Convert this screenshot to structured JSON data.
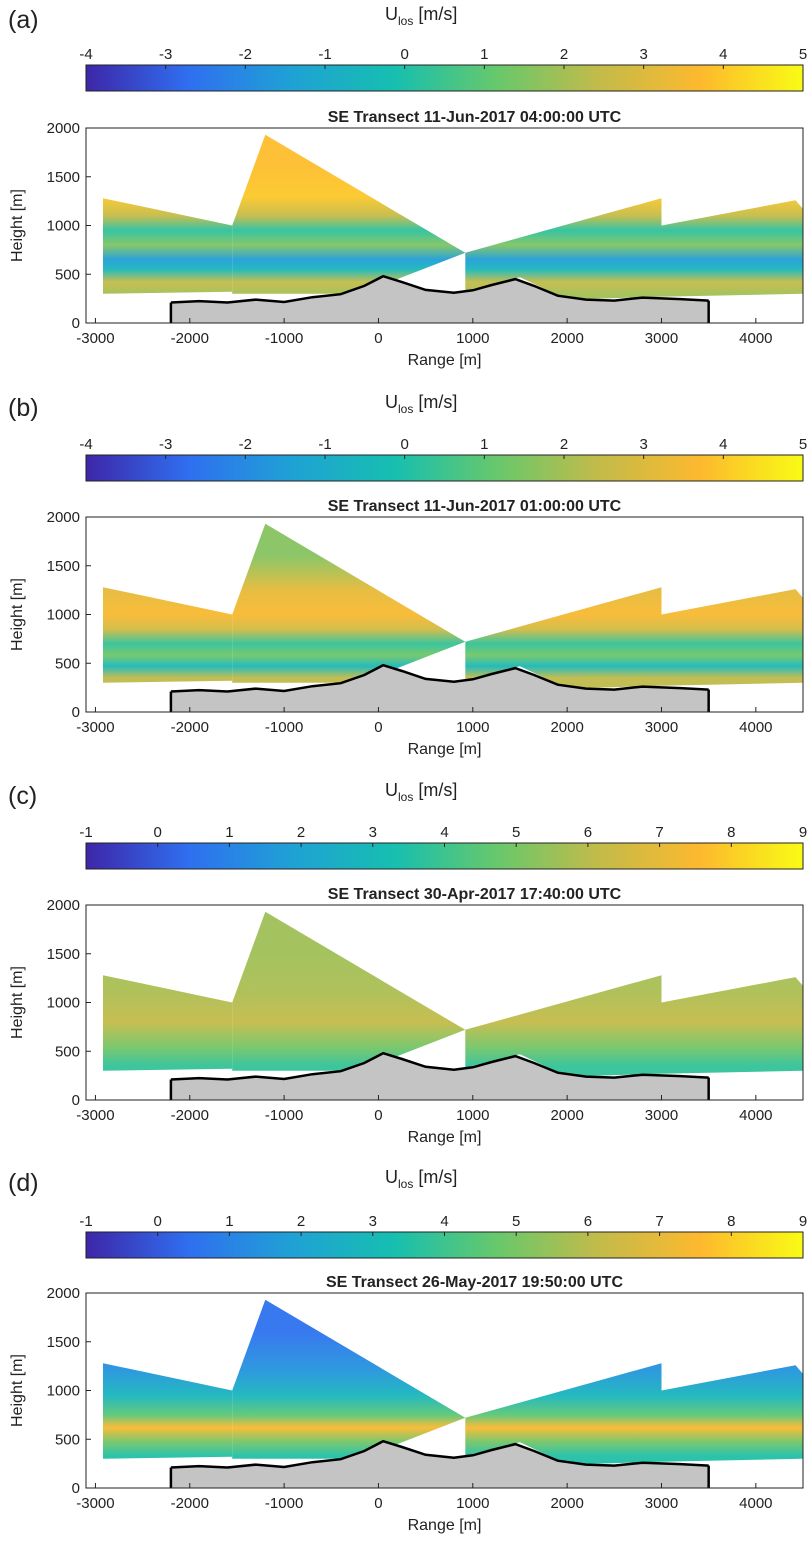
{
  "colormap": [
    "#3e26a8",
    "#2f6ff0",
    "#1fa1d5",
    "#16bfb0",
    "#66c86c",
    "#c2bb4a",
    "#fdb92e",
    "#f9fb15"
  ],
  "terrain_color": "#c4c4c4",
  "chart_data": [
    {
      "type": "heatmap",
      "panel_label": "(a)",
      "title": "SE Transect 11-Jun-2017 04:00:00 UTC",
      "colorbar": {
        "label_main": "U",
        "label_sub": "los",
        "label_unit": " [m/s]",
        "ticks": [
          -4,
          -3,
          -2,
          -1,
          0,
          1,
          2,
          3,
          4,
          5
        ],
        "range": [
          -4,
          5
        ]
      },
      "xlabel": "Range [m]",
      "ylabel": "Height [m]",
      "xlim": [
        -3100,
        4500
      ],
      "ylim": [
        0,
        2000
      ],
      "xticks": [
        -3000,
        -2000,
        -1000,
        0,
        1000,
        2000,
        3000,
        4000
      ],
      "yticks": [
        0,
        500,
        1000,
        1500,
        2000
      ],
      "layers": [
        {
          "height": 1600,
          "value": 3.8
        },
        {
          "height": 1300,
          "value": 4.0
        },
        {
          "height": 1100,
          "value": 2.5
        },
        {
          "height": 950,
          "value": 0.2
        },
        {
          "height": 800,
          "value": 1.5
        },
        {
          "height": 650,
          "value": -1.5
        },
        {
          "height": 550,
          "value": -0.5
        },
        {
          "height": 420,
          "value": 2.5
        },
        {
          "height": 300,
          "value": 2.0
        }
      ]
    },
    {
      "type": "heatmap",
      "panel_label": "(b)",
      "title": "SE Transect 11-Jun-2017 01:00:00 UTC",
      "colorbar": {
        "label_main": "U",
        "label_sub": "los",
        "label_unit": " [m/s]",
        "ticks": [
          -4,
          -3,
          -2,
          -1,
          0,
          1,
          2,
          3,
          4,
          5
        ],
        "range": [
          -4,
          5
        ]
      },
      "xlabel": "Range [m]",
      "ylabel": "Height [m]",
      "xlim": [
        -3100,
        4500
      ],
      "ylim": [
        0,
        2000
      ],
      "xticks": [
        -3000,
        -2000,
        -1000,
        0,
        1000,
        2000,
        3000,
        4000
      ],
      "yticks": [
        0,
        500,
        1000,
        1500,
        2000
      ],
      "layers": [
        {
          "height": 1600,
          "value": 1.6
        },
        {
          "height": 1250,
          "value": 3.2
        },
        {
          "height": 1000,
          "value": 3.6
        },
        {
          "height": 850,
          "value": 2.8
        },
        {
          "height": 700,
          "value": 0.3
        },
        {
          "height": 580,
          "value": 1.3
        },
        {
          "height": 470,
          "value": -0.5
        },
        {
          "height": 350,
          "value": 2.4
        }
      ]
    },
    {
      "type": "heatmap",
      "panel_label": "(c)",
      "title": "SE Transect 30-Apr-2017 17:40:00 UTC",
      "colorbar": {
        "label_main": "U",
        "label_sub": "los",
        "label_unit": " [m/s]",
        "ticks": [
          -1,
          0,
          1,
          2,
          3,
          4,
          5,
          6,
          7,
          8,
          9
        ],
        "range": [
          -1,
          9
        ]
      },
      "xlabel": "Range [m]",
      "ylabel": "Height [m]",
      "xlim": [
        -3100,
        4500
      ],
      "ylim": [
        0,
        2000
      ],
      "xticks": [
        -3000,
        -2000,
        -1000,
        0,
        1000,
        2000,
        3000,
        4000
      ],
      "yticks": [
        0,
        500,
        1000,
        1500,
        2000
      ],
      "layers": [
        {
          "height": 1500,
          "value": 5.6
        },
        {
          "height": 1100,
          "value": 5.8
        },
        {
          "height": 800,
          "value": 6.2
        },
        {
          "height": 550,
          "value": 5.0
        },
        {
          "height": 350,
          "value": 3.8
        }
      ]
    },
    {
      "type": "heatmap",
      "panel_label": "(d)",
      "title": "SE Transect 26-May-2017 19:50:00 UTC",
      "colorbar": {
        "label_main": "U",
        "label_sub": "los",
        "label_unit": " [m/s]",
        "ticks": [
          -1,
          0,
          1,
          2,
          3,
          4,
          5,
          6,
          7,
          8,
          9
        ],
        "range": [
          -1,
          9
        ]
      },
      "xlabel": "Range [m]",
      "ylabel": "Height [m]",
      "xlim": [
        -3100,
        4500
      ],
      "ylim": [
        0,
        2000
      ],
      "xticks": [
        -3000,
        -2000,
        -1000,
        0,
        1000,
        2000,
        3000,
        4000
      ],
      "yticks": [
        0,
        500,
        1000,
        1500,
        2000
      ],
      "layers": [
        {
          "height": 1600,
          "value": 0.5
        },
        {
          "height": 1200,
          "value": 1.5
        },
        {
          "height": 950,
          "value": 2.8
        },
        {
          "height": 750,
          "value": 4.5
        },
        {
          "height": 620,
          "value": 7.5
        },
        {
          "height": 480,
          "value": 5.0
        },
        {
          "height": 330,
          "value": 3.5
        }
      ]
    }
  ]
}
